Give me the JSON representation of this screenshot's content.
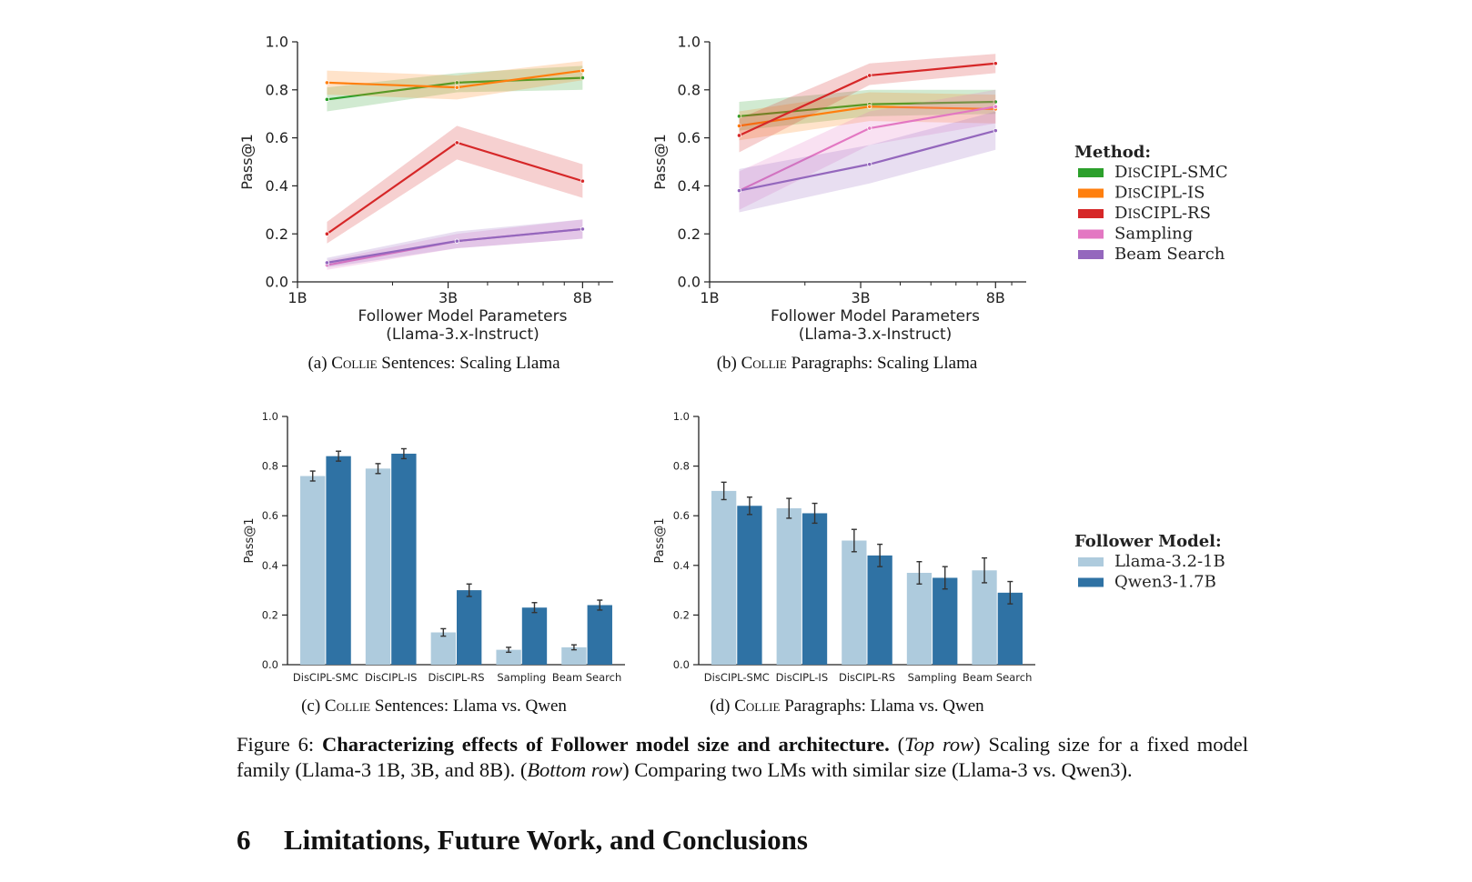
{
  "chart_data": [
    {
      "id": "a",
      "type": "line",
      "caption": "(a) COLLIE Sentences: Scaling Llama",
      "caption_prefix": "(a) ",
      "caption_sc": "Collie",
      "caption_suffix": " Sentences: Scaling Llama",
      "xlabel": "Follower Model Parameters",
      "xlabel2": "(Llama-3.x-Instruct)",
      "ylabel": "Pass@1",
      "x": [
        1.24,
        3.2,
        8.0
      ],
      "x_ticks": [
        "1B",
        "3B",
        "8B"
      ],
      "x_tick_values": [
        1,
        3,
        8
      ],
      "xscale": "log",
      "ylim": [
        0,
        1
      ],
      "y_ticks": [
        "0.0",
        "0.2",
        "0.4",
        "0.6",
        "0.8",
        "1.0"
      ],
      "series": [
        {
          "name": "DisCIPL-SMC",
          "color": "#2ca02c",
          "values": [
            0.76,
            0.83,
            0.85
          ],
          "band": [
            [
              0.71,
              0.81
            ],
            [
              0.79,
              0.87
            ],
            [
              0.8,
              0.9
            ]
          ]
        },
        {
          "name": "DisCIPL-IS",
          "color": "#ff7f0e",
          "values": [
            0.83,
            0.81,
            0.88
          ],
          "band": [
            [
              0.78,
              0.88
            ],
            [
              0.76,
              0.86
            ],
            [
              0.84,
              0.92
            ]
          ]
        },
        {
          "name": "DisCIPL-RS",
          "color": "#d62728",
          "values": [
            0.2,
            0.58,
            0.42
          ],
          "band": [
            [
              0.16,
              0.25
            ],
            [
              0.51,
              0.65
            ],
            [
              0.35,
              0.49
            ]
          ]
        },
        {
          "name": "Sampling",
          "color": "#e377c2",
          "values": [
            0.07,
            0.17,
            0.22
          ],
          "band": [
            [
              0.05,
              0.09
            ],
            [
              0.14,
              0.2
            ],
            [
              0.18,
              0.26
            ]
          ]
        },
        {
          "name": "Beam Search",
          "color": "#9467bd",
          "values": [
            0.08,
            0.17,
            0.22
          ],
          "band": [
            [
              0.06,
              0.1
            ],
            [
              0.14,
              0.21
            ],
            [
              0.18,
              0.26
            ]
          ]
        }
      ]
    },
    {
      "id": "b",
      "type": "line",
      "caption": "(b) COLLIE Paragraphs: Scaling Llama",
      "caption_prefix": "(b) ",
      "caption_sc": "Collie",
      "caption_suffix": " Paragraphs: Scaling Llama",
      "xlabel": "Follower Model Parameters",
      "xlabel2": "(Llama-3.x-Instruct)",
      "ylabel": "Pass@1",
      "x": [
        1.24,
        3.2,
        8.0
      ],
      "x_ticks": [
        "1B",
        "3B",
        "8B"
      ],
      "x_tick_values": [
        1,
        3,
        8
      ],
      "xscale": "log",
      "ylim": [
        0,
        1
      ],
      "y_ticks": [
        "0.0",
        "0.2",
        "0.4",
        "0.6",
        "0.8",
        "1.0"
      ],
      "series": [
        {
          "name": "DisCIPL-SMC",
          "color": "#2ca02c",
          "values": [
            0.69,
            0.74,
            0.75
          ],
          "band": [
            [
              0.63,
              0.75
            ],
            [
              0.69,
              0.8
            ],
            [
              0.7,
              0.8
            ]
          ]
        },
        {
          "name": "DisCIPL-IS",
          "color": "#ff7f0e",
          "values": [
            0.65,
            0.73,
            0.72
          ],
          "band": [
            [
              0.59,
              0.71
            ],
            [
              0.67,
              0.79
            ],
            [
              0.66,
              0.78
            ]
          ]
        },
        {
          "name": "DisCIPL-RS",
          "color": "#d62728",
          "values": [
            0.61,
            0.86,
            0.91
          ],
          "band": [
            [
              0.54,
              0.68
            ],
            [
              0.82,
              0.91
            ],
            [
              0.87,
              0.95
            ]
          ]
        },
        {
          "name": "Sampling",
          "color": "#e377c2",
          "values": [
            0.38,
            0.64,
            0.73
          ],
          "band": [
            [
              0.3,
              0.46
            ],
            [
              0.57,
              0.71
            ],
            [
              0.66,
              0.8
            ]
          ]
        },
        {
          "name": "Beam Search",
          "color": "#9467bd",
          "values": [
            0.38,
            0.49,
            0.63
          ],
          "band": [
            [
              0.29,
              0.47
            ],
            [
              0.41,
              0.57
            ],
            [
              0.55,
              0.71
            ]
          ]
        }
      ]
    },
    {
      "id": "c",
      "type": "bar",
      "caption": "(c) COLLIE Sentences: Llama vs. Qwen",
      "caption_prefix": "(c) ",
      "caption_sc": "Collie",
      "caption_suffix": " Sentences: Llama vs. Qwen",
      "ylabel": "Pass@1",
      "ylim": [
        0,
        1
      ],
      "y_ticks": [
        "0.0",
        "0.2",
        "0.4",
        "0.6",
        "0.8",
        "1.0"
      ],
      "categories": [
        "DisCIPL-SMC",
        "DisCIPL-IS",
        "DisCIPL-RS",
        "Sampling",
        "Beam Search"
      ],
      "series": [
        {
          "name": "Llama-3.2-1B",
          "color": "#aecbdd",
          "values": [
            0.76,
            0.79,
            0.13,
            0.06,
            0.07
          ],
          "err": [
            0.02,
            0.02,
            0.015,
            0.01,
            0.01
          ]
        },
        {
          "name": "Qwen3-1.7B",
          "color": "#2f72a4",
          "values": [
            0.84,
            0.85,
            0.3,
            0.23,
            0.24
          ],
          "err": [
            0.02,
            0.02,
            0.025,
            0.02,
            0.02
          ]
        }
      ]
    },
    {
      "id": "d",
      "type": "bar",
      "caption": "(d) COLLIE Paragraphs: Llama vs. Qwen",
      "caption_prefix": "(d) ",
      "caption_sc": "Collie",
      "caption_suffix": " Paragraphs: Llama vs. Qwen",
      "ylabel": "Pass@1",
      "ylim": [
        0,
        1
      ],
      "y_ticks": [
        "0.0",
        "0.2",
        "0.4",
        "0.6",
        "0.8",
        "1.0"
      ],
      "categories": [
        "DisCIPL-SMC",
        "DisCIPL-IS",
        "DisCIPL-RS",
        "Sampling",
        "Beam Search"
      ],
      "series": [
        {
          "name": "Llama-3.2-1B",
          "color": "#aecbdd",
          "values": [
            0.7,
            0.63,
            0.5,
            0.37,
            0.38
          ],
          "err": [
            0.035,
            0.04,
            0.045,
            0.045,
            0.05
          ]
        },
        {
          "name": "Qwen3-1.7B",
          "color": "#2f72a4",
          "values": [
            0.64,
            0.61,
            0.44,
            0.35,
            0.29
          ],
          "err": [
            0.035,
            0.04,
            0.045,
            0.045,
            0.045
          ]
        }
      ]
    }
  ],
  "legend_method": {
    "title": "Method:",
    "items": [
      {
        "label_pre": "D",
        "label_sc": "is",
        "label_post": "CIPL-SMC",
        "color": "#2ca02c"
      },
      {
        "label_pre": "D",
        "label_sc": "is",
        "label_post": "CIPL-IS",
        "color": "#ff7f0e"
      },
      {
        "label_pre": "D",
        "label_sc": "is",
        "label_post": "CIPL-RS",
        "color": "#d62728"
      },
      {
        "label_pre": "Sampling",
        "label_sc": "",
        "label_post": "",
        "color": "#e377c2"
      },
      {
        "label_pre": "Beam Search",
        "label_sc": "",
        "label_post": "",
        "color": "#9467bd"
      }
    ]
  },
  "legend_follower": {
    "title": "Follower Model:",
    "items": [
      {
        "label": "Llama-3.2-1B",
        "color": "#aecbdd"
      },
      {
        "label": "Qwen3-1.7B",
        "color": "#2f72a4"
      }
    ]
  },
  "figure_caption": {
    "label": "Figure 6: ",
    "bold": "Characterizing effects of Follower model size and architecture.",
    "italic1": "Top row",
    "text1": " Scaling size for a fixed model family (Llama-3 1B, 3B, and 8B). (",
    "italic2": "Bottom row",
    "text2": ") Comparing two LMs with similar size (Llama-3 vs. Qwen3)."
  },
  "section": {
    "number": "6",
    "title": "Limitations, Future Work, and Conclusions"
  }
}
